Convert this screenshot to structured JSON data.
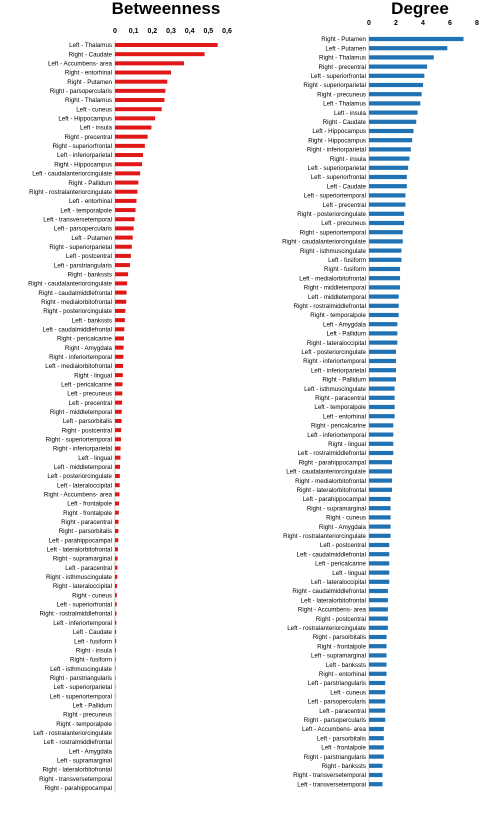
{
  "chart_data": [
    {
      "type": "bar",
      "orientation": "horizontal",
      "title": "Betweenness",
      "xlabel": "",
      "ylabel": "",
      "xlim": [
        0,
        0.6
      ],
      "ticks": [
        "0",
        "0,1",
        "0,2",
        "0,3",
        "0,4",
        "0,5",
        "0,6"
      ],
      "tick_values": [
        0,
        0.1,
        0.2,
        0.3,
        0.4,
        0.5,
        0.6
      ],
      "grid": false,
      "color": "#e01818",
      "categories": [
        "Left -  Thalamus",
        "Right -  Caudate",
        "Left -  Accumbens- area",
        "Right - entorhinal",
        "Right -  Putamen",
        "Right - parsopercularis",
        "Right -  Thalamus",
        "Left - cuneus",
        "Left -  Hippocampus",
        "Left - insula",
        "Right - precentral",
        "Right - superiorfrontal",
        "Left - inferiorparietal",
        "Right -  Hippocampus",
        "Left - caudalanteriorcingulate",
        "Right -  Pallidum",
        "Right - rostralanteriorcingulate",
        "Left - entorhinal",
        "Left - temporalpole",
        "Left - transversetemporal",
        "Left - parsopercularis",
        "Left -  Putamen",
        "Right - superiorparietal",
        "Left - postcentral",
        "Left - parstriangularis",
        "Right - bankssts",
        "Right - caudalanteriorcingulate",
        "Right - caudalmiddlefrontal",
        "Right - medialorbitofrontal",
        "Right - posteriorcingulate",
        "Left - bankssts",
        "Left - caudalmiddlefrontal",
        "Right - pericalcarine",
        "Right -  Amygdala",
        "Right - inferiortemporal",
        "Left - medialorbitofrontal",
        "Right - lingual",
        "Left - pericalcarine",
        "Left - precuneus",
        "Left - precentral",
        "Right - middletemporal",
        "Left - parsorbitalis",
        "Right - postcentral",
        "Right - superiortemporal",
        "Right - inferiorparietal",
        "Left - lingual",
        "Left - middletemporal",
        "Left - posteriorcingulate",
        "Left - lateraloccipital",
        "Right -  Accumbens- area",
        "Left - frontalpole",
        "Right - frontalpole",
        "Right - paracentral",
        "Right - parsorbitalis",
        "Left - parahippocampal",
        "Left - lateralorbitofrontal",
        "Right - supramarginal",
        "Left - paracentral",
        "Right - isthmuscingulate",
        "Right - lateraloccipital",
        "Right - cuneus",
        "Left - superiorfrontal",
        "Right - rostralmiddlefrontal",
        "Left - inferiortemporal",
        "Left -  Caudate",
        "Left - fusiform",
        "Right - insula",
        "Right - fusiform",
        "Left - isthmuscingulate",
        "Right - parstriangularis",
        "Left - superiorparietal",
        "Left - superiortemporal",
        "Left -  Pallidum",
        "Right - precuneus",
        "Right - temporalpole",
        "Left - rostralanteriorcingulate",
        "Left - rostralmiddlefrontal",
        "Left -  Amygdala",
        "Left - supramarginal",
        "Right - lateralorbitofrontal",
        "Right - transversetemporal",
        "Right - parahippocampal"
      ],
      "values": [
        0.55,
        0.48,
        0.37,
        0.3,
        0.28,
        0.27,
        0.265,
        0.25,
        0.215,
        0.195,
        0.175,
        0.16,
        0.15,
        0.145,
        0.135,
        0.125,
        0.12,
        0.115,
        0.11,
        0.105,
        0.1,
        0.095,
        0.09,
        0.085,
        0.08,
        0.07,
        0.065,
        0.062,
        0.06,
        0.055,
        0.053,
        0.05,
        0.048,
        0.046,
        0.045,
        0.043,
        0.042,
        0.04,
        0.039,
        0.038,
        0.036,
        0.035,
        0.033,
        0.032,
        0.03,
        0.029,
        0.027,
        0.026,
        0.025,
        0.024,
        0.022,
        0.02,
        0.019,
        0.018,
        0.017,
        0.016,
        0.014,
        0.013,
        0.012,
        0.011,
        0.01,
        0.009,
        0.008,
        0.007,
        0.006,
        0.006,
        0.005,
        0.004,
        0.003,
        0.003,
        0.002,
        0.002,
        0.001,
        0.001,
        0.001,
        0.0005,
        0.0005,
        0.0003,
        0.0002,
        0.0001,
        0.0,
        0.0
      ]
    },
    {
      "type": "bar",
      "orientation": "horizontal",
      "title": "Degree",
      "xlabel": "",
      "ylabel": "",
      "xlim": [
        0,
        8
      ],
      "ticks": [
        "0",
        "2",
        "4",
        "6",
        "8"
      ],
      "tick_values": [
        0,
        2,
        4,
        6,
        8
      ],
      "grid": false,
      "color": "#1f72b4",
      "categories": [
        "Right -  Putamen",
        "Left -  Putamen",
        "Right -  Thalamus",
        "Right - precentral",
        "Left - superiorfrontal",
        "Right - superiorparietal",
        "Right - precuneus",
        "Left -  Thalamus",
        "Left - insula",
        "Right -  Caudate",
        "Left -  Hippocampus",
        "Right -  Hippocampus",
        "Right - inferiorparietal",
        "Right - insula",
        "Left - superiorparietal",
        "Left - superiorfrontal",
        "Left -  Caudate",
        "Left - superiortemporal",
        "Left - precentral",
        "Right - posteriorcingulate",
        "Left - precuneus",
        "Right - superiortemporal",
        "Right - caudalanteriorcingulate",
        "Right - isthmuscingulate",
        "Left - fusiform",
        "Right - fusiform",
        "Left - medialorbitofrontal",
        "Right - middletemporal",
        "Left - middletemporal",
        "Right - rostralmiddlefrontal",
        "Right - temporalpole",
        "Left -  Amygdala",
        "Left -  Pallidum",
        "Right - lateraloccipital",
        "Left - posteriorcingulate",
        "Right - inferiortemporal",
        "Left - inferiorparietal",
        "Right -  Pallidum",
        "Left - isthmuscingulate",
        "Right - paracentral",
        "Left - temporalpole",
        "Left - entorhinal",
        "Right - pericalcarine",
        "Left - inferiortemporal",
        "Right - lingual",
        "Left - rostralmiddlefrontal",
        "Right - parahippocampal",
        "Left - caudalanteriorcingulate",
        "Right - medialorbitofrontal",
        "Right - lateralorbitofrontal",
        "Left - parahippocampal",
        "Right - supramarginal",
        "Right - cuneus",
        "Right -  Amygdala",
        "Right - rostralanteriorcingulate",
        "Left - postcentral",
        "Left - caudalmiddlefrontal",
        "Left - pericalcarine",
        "Left - lingual",
        "Left - lateraloccipital",
        "Right - caudalmiddlefrontal",
        "Left - lateralorbitofrontal",
        "Right -  Accumbens- area",
        "Right - postcentral",
        "Left - rostralanteriorcingulate",
        "Right - parsorbitalis",
        "Right - frontalpole",
        "Left - supramarginal",
        "Left - bankssts",
        "Right - entorhinal",
        "Left - parstriangularis",
        "Left - cuneus",
        "Left - parsopercularis",
        "Left - paracentral",
        "Right - parsopercularis",
        "Left -  Accumbens- area",
        "Left - parsorbitalis",
        "Left - frontalpole",
        "Right - parstriangularis",
        "Right - bankssts",
        "Right - transversetemporal",
        "Left - transversetemporal"
      ],
      "values": [
        7.0,
        5.8,
        4.8,
        4.3,
        4.1,
        4.0,
        3.9,
        3.8,
        3.6,
        3.5,
        3.3,
        3.2,
        3.1,
        3.0,
        2.9,
        2.8,
        2.8,
        2.7,
        2.7,
        2.6,
        2.6,
        2.5,
        2.5,
        2.4,
        2.4,
        2.3,
        2.3,
        2.3,
        2.2,
        2.2,
        2.2,
        2.1,
        2.1,
        2.1,
        2.0,
        2.0,
        2.0,
        2.0,
        1.9,
        1.9,
        1.9,
        1.9,
        1.8,
        1.8,
        1.8,
        1.8,
        1.7,
        1.7,
        1.7,
        1.7,
        1.6,
        1.6,
        1.6,
        1.6,
        1.6,
        1.5,
        1.5,
        1.5,
        1.5,
        1.5,
        1.4,
        1.4,
        1.4,
        1.4,
        1.4,
        1.3,
        1.3,
        1.3,
        1.3,
        1.3,
        1.2,
        1.2,
        1.2,
        1.2,
        1.2,
        1.1,
        1.1,
        1.1,
        1.1,
        1.0,
        1.0,
        1.0
      ]
    }
  ]
}
